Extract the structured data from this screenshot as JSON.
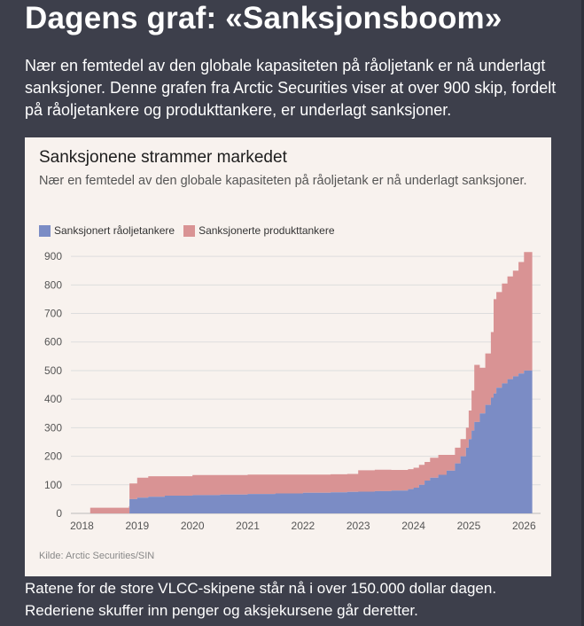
{
  "page": {
    "headline": "Dagens graf: «Sanksjonsboom»",
    "intro": "Nær en femtedel av den globale kapasiteten på råoljetank er nå underlagt sanksjoner. Denne grafen fra Arctic Securities viser at over 900 skip, fordelt på råoljetankere og produkttankere, er underlagt sanksjoner.",
    "outro": "Ratene for de store VLCC-skipene står nå i over 150.000 dollar dagen. Rederiene skuffer inn penger og aksjekursene går deretter."
  },
  "chart_data": {
    "type": "area",
    "stacked": true,
    "title": "Sanksjonene strammer markedet",
    "subtitle": "Nær en femtedel av den globale kapasiteten på råoljetank er nå underlagt sanksjoner.",
    "source": "Kilde: Arctic Securities/SIN",
    "legend_position": "top-left",
    "grid": true,
    "xlabel": "",
    "ylabel": "",
    "xlim": [
      2017.8,
      2026.3
    ],
    "ylim": [
      0,
      950
    ],
    "x_ticks": [
      2018,
      2019,
      2020,
      2021,
      2022,
      2023,
      2024,
      2025,
      2026
    ],
    "y_ticks": [
      0,
      100,
      200,
      300,
      400,
      500,
      600,
      700,
      800,
      900
    ],
    "x": [
      2018.15,
      2018.85,
      2018.86,
      2019.0,
      2019.2,
      2019.5,
      2020.0,
      2020.5,
      2021.0,
      2021.5,
      2022.0,
      2022.5,
      2022.8,
      2023.0,
      2023.3,
      2023.6,
      2023.9,
      2024.0,
      2024.1,
      2024.2,
      2024.3,
      2024.45,
      2024.6,
      2024.75,
      2024.85,
      2024.95,
      2025.0,
      2025.05,
      2025.1,
      2025.2,
      2025.3,
      2025.4,
      2025.45,
      2025.5,
      2025.6,
      2025.7,
      2025.8,
      2025.9,
      2026.0,
      2026.15
    ],
    "series": [
      {
        "name": "Sanksjonert råoljetankere",
        "color": "#7b8cc5",
        "values": [
          0,
          0,
          50,
          55,
          58,
          62,
          64,
          66,
          68,
          70,
          72,
          74,
          75,
          76,
          78,
          80,
          85,
          90,
          100,
          115,
          125,
          135,
          150,
          175,
          200,
          230,
          260,
          290,
          320,
          350,
          380,
          405,
          420,
          440,
          455,
          470,
          480,
          490,
          500,
          500
        ]
      },
      {
        "name": "Sanksjonerte produkttankere",
        "color": "#d99394",
        "values": [
          20,
          25,
          55,
          70,
          72,
          68,
          70,
          68,
          68,
          66,
          64,
          63,
          63,
          75,
          75,
          72,
          70,
          70,
          70,
          65,
          70,
          70,
          55,
          55,
          60,
          70,
          100,
          140,
          200,
          160,
          180,
          230,
          330,
          335,
          350,
          360,
          370,
          390,
          415,
          430
        ]
      }
    ]
  }
}
